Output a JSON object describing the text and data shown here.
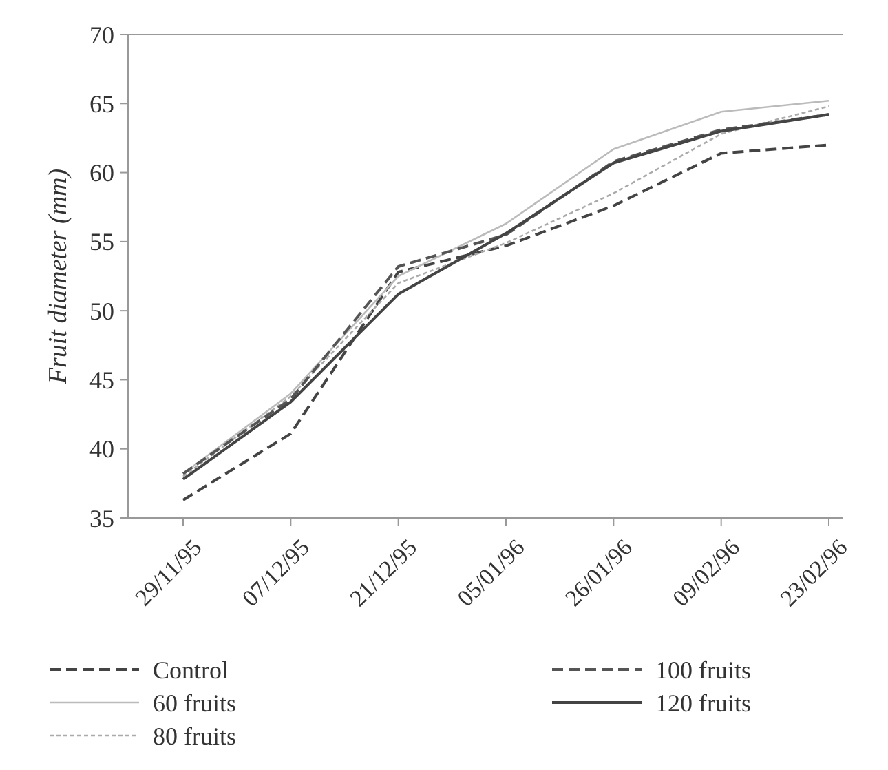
{
  "chart_data": {
    "type": "line",
    "ylabel": "Fruit diameter (mm)",
    "categories": [
      "29/11/95",
      "07/12/95",
      "21/12/95",
      "05/01/96",
      "26/01/96",
      "09/02/96",
      "23/02/96"
    ],
    "ylim": [
      35,
      70
    ],
    "yticks": [
      35,
      40,
      45,
      50,
      55,
      60,
      65,
      70
    ],
    "grid": false,
    "legend": "bottom",
    "marker": "none",
    "series": [
      {
        "name": "Control",
        "color": "#444444",
        "line_style": "dashed",
        "values": [
          36.3,
          41.1,
          52.8,
          54.7,
          57.6,
          61.4,
          62.0
        ]
      },
      {
        "name": "60 fruits",
        "color": "#bbbbbb",
        "line_style": "solid",
        "values": [
          38.2,
          44.0,
          52.5,
          56.3,
          61.7,
          64.4,
          65.2
        ]
      },
      {
        "name": "80 fruits",
        "color": "#aaaaaa",
        "line_style": "dotted",
        "values": [
          38.0,
          43.8,
          52.0,
          54.9,
          58.5,
          62.8,
          64.8
        ]
      },
      {
        "name": "100 fruits",
        "color": "#555555",
        "line_style": "dashed",
        "values": [
          38.2,
          43.6,
          53.2,
          55.5,
          60.8,
          63.1,
          64.2
        ]
      },
      {
        "name": "120 fruits",
        "color": "#444444",
        "line_style": "solid",
        "values": [
          37.8,
          43.4,
          51.2,
          55.6,
          60.7,
          63.0,
          64.2
        ]
      }
    ]
  }
}
